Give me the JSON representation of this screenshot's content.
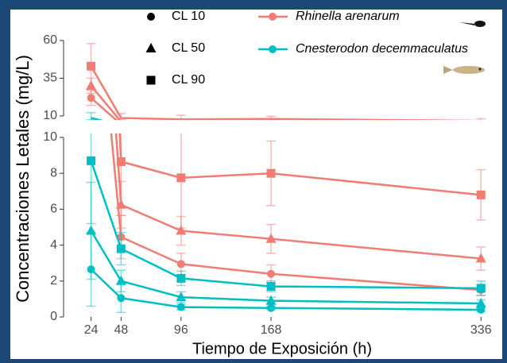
{
  "chart_data": {
    "type": "line",
    "x_label": "Tiempo de Exposición (h)",
    "y_label": "Concentraciones Letales (mg/L)",
    "x": [
      24,
      48,
      96,
      168,
      336
    ],
    "xlim": [
      2,
      353
    ],
    "xticks": [
      24,
      48,
      96,
      168,
      336
    ],
    "panels": [
      {
        "ylim": [
          10,
          60
        ],
        "yticks": [
          10,
          35,
          60
        ]
      },
      {
        "ylim": [
          0,
          10
        ],
        "yticks": [
          0,
          2,
          4,
          6,
          8,
          10
        ]
      }
    ],
    "levels": [
      {
        "name": "CL 10",
        "marker": "circle"
      },
      {
        "name": "CL 50",
        "marker": "triangle"
      },
      {
        "name": "CL 90",
        "marker": "square"
      }
    ],
    "species": [
      {
        "name": "Rhinella arenarum",
        "color": "#f07c73",
        "series": [
          {
            "values": [
              22,
              4.45,
              2.95,
              2.4,
              1.5
            ],
            "errors": [
              5,
              1.2,
              0.6,
              0.5,
              0.3
            ]
          },
          {
            "values": [
              30,
              6.25,
              4.8,
              4.35,
              3.25
            ],
            "errors": [
              5,
              1.3,
              0.8,
              0.8,
              0.65
            ]
          },
          {
            "values": [
              43,
              8.65,
              7.75,
              8.0,
              6.8
            ],
            "errors": [
              15,
              3,
              2.8,
              1.8,
              1.4
            ]
          }
        ]
      },
      {
        "name": "Cnesterodon decemmaculatus",
        "color": "#00bfc4",
        "series": [
          {
            "values": [
              2.65,
              1.05,
              0.55,
              0.5,
              0.4
            ],
            "errors": [
              2.05,
              0.8,
              0.15,
              0.1,
              0.1
            ]
          },
          {
            "values": [
              4.8,
              2.0,
              1.1,
              0.9,
              0.75
            ],
            "errors": [
              2.7,
              0.6,
              0.3,
              0.2,
              0.2
            ]
          },
          {
            "values": [
              8.7,
              3.8,
              2.15,
              1.7,
              1.6
            ],
            "errors": [
              3.5,
              0.9,
              0.4,
              0.3,
              0.4
            ]
          }
        ]
      }
    ]
  }
}
